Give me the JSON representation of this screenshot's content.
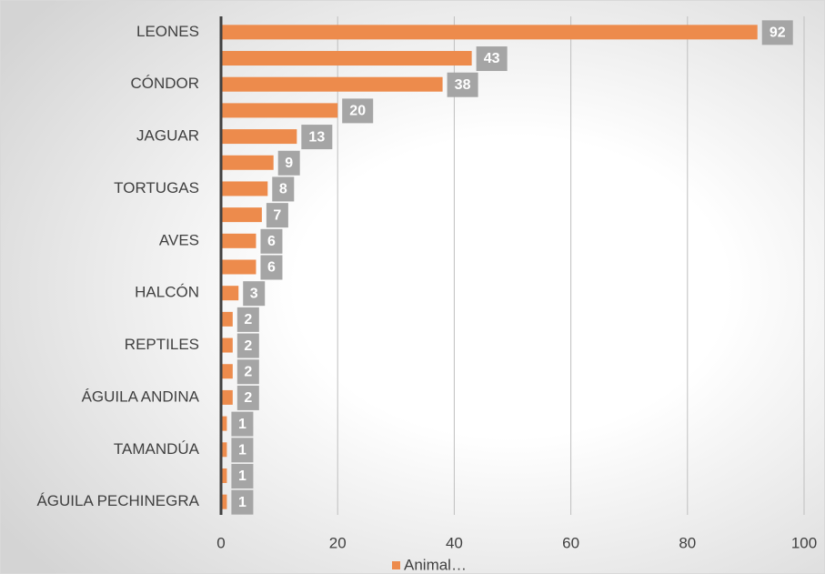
{
  "chart_data": {
    "type": "hbar",
    "categories": [
      "LEONES",
      null,
      "CÓNDOR",
      null,
      "JAGUAR",
      null,
      "TORTUGAS",
      null,
      "AVES",
      null,
      "HALCÓN",
      null,
      "REPTILES",
      null,
      "ÁGUILA ANDINA",
      null,
      "TAMANDÚA",
      null,
      "ÁGUILA PECHINEGRA"
    ],
    "series": [
      {
        "name": "Animal…",
        "color": "#ed8b4c",
        "values": [
          92,
          43,
          38,
          20,
          13,
          9,
          8,
          7,
          6,
          6,
          3,
          2,
          2,
          2,
          2,
          1,
          1,
          1,
          1
        ]
      }
    ],
    "xlim": [
      0,
      100
    ],
    "xticks": [
      0,
      20,
      40,
      60,
      80,
      100
    ],
    "grid": true,
    "legend": "bottom"
  }
}
